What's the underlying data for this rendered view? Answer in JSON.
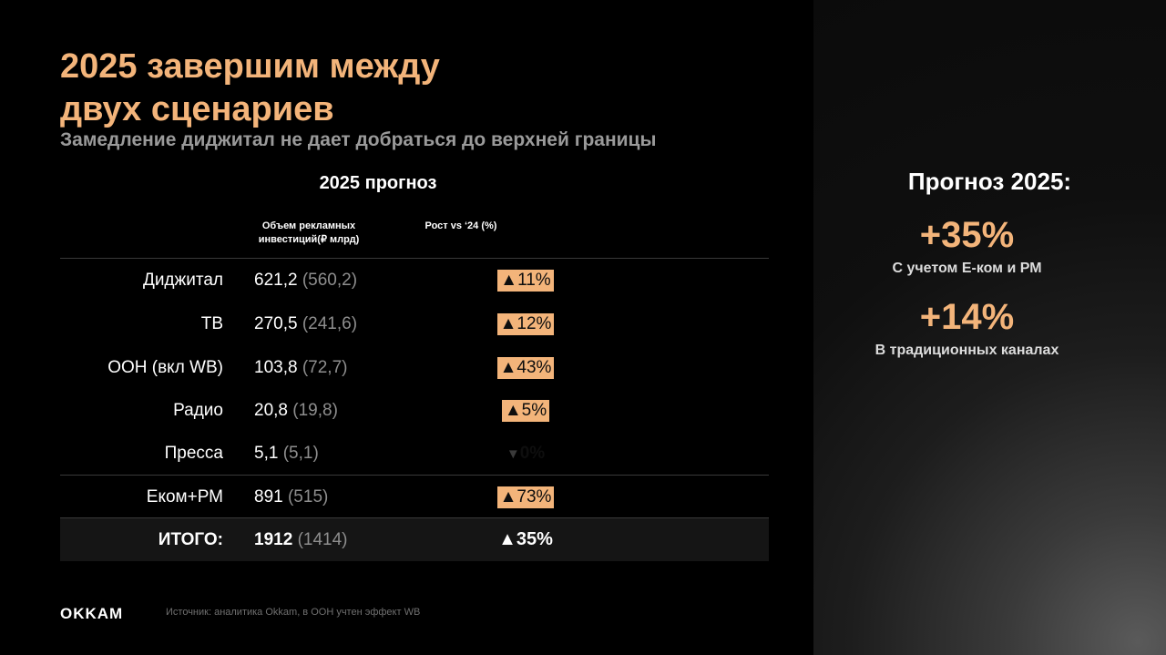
{
  "slide": {
    "title_line1": "2025 завершим между",
    "title_line2": "двух сценариев",
    "subtitle": "Замедление диджитал не дает добраться до верхней границы"
  },
  "table": {
    "heading": "2025 прогноз",
    "col_volume": "Объем рекламных инвестиций(₽ млрд)",
    "col_growth": "Рост  vs ‘24 (%)",
    "rows": [
      {
        "label": "Диджитал",
        "value": "621,2",
        "prev": "(560,2)",
        "growth": "▲11%"
      },
      {
        "label": "ТВ",
        "value": "270,5",
        "prev": "(241,6)",
        "growth": "▲12%"
      },
      {
        "label": "ООН (вкл WB)",
        "value": "103,8",
        "prev": "(72,7)",
        "growth": "▲43%"
      },
      {
        "label": "Радио",
        "value": "20,8",
        "prev": "(19,8)",
        "growth": "▲5%"
      },
      {
        "label": "Пресса",
        "value": "5,1",
        "prev": "(5,1)",
        "growth": "0%"
      },
      {
        "label": "Еком+РМ",
        "value": "891",
        "prev": "(515)",
        "growth": "▲73%"
      }
    ],
    "total": {
      "label": "ИТОГО:",
      "value": "1912",
      "prev": "(1414)",
      "growth": "▲35%"
    }
  },
  "footer": {
    "logo": "OKKAM",
    "source": "Источник: аналитика Okkam, в ООН учтен эффект WB"
  },
  "sidebar": {
    "title": "Прогноз 2025:",
    "stat1_value": "+35%",
    "stat1_caption": "С учетом Е-ком и РМ",
    "stat2_value": "+14%",
    "stat2_caption": "В традиционных каналах"
  },
  "colors": {
    "accent": "#f3b47a",
    "background": "#000000",
    "muted_text": "#8e8e8e"
  }
}
